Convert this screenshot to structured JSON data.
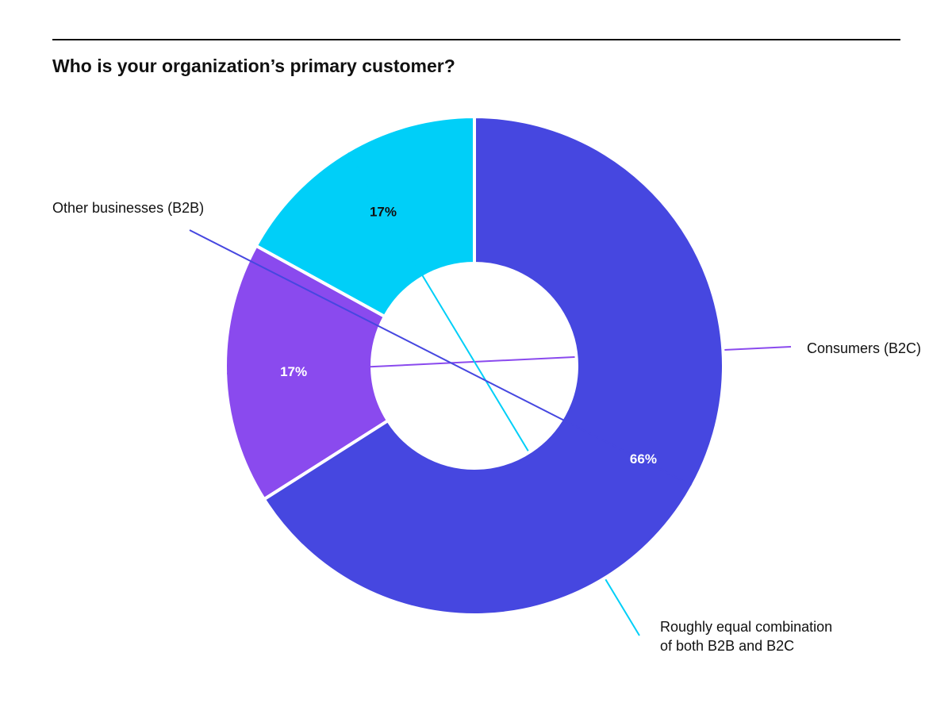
{
  "header": {
    "title": "Who is your organization’s primary customer?"
  },
  "chart_data": {
    "type": "pie",
    "title": "Who is your organization’s primary customer?",
    "donut": true,
    "slices": [
      {
        "label": "Consumers (B2C)",
        "value": 17,
        "display": "17%",
        "color": "#8A4AEE",
        "text_color": "#FFFFFF"
      },
      {
        "label": "Roughly equal combination of both B2B and B2C",
        "value": 17,
        "display": "17%",
        "color": "#00CFF8",
        "text_color": "#111111"
      },
      {
        "label": "Other businesses (B2B)",
        "value": 66,
        "display": "66%",
        "color": "#4647E0",
        "text_color": "#FFFFFF"
      }
    ],
    "legend": "callout labels"
  }
}
